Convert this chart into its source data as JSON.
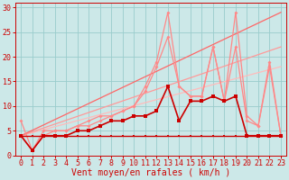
{
  "background_color": "#cce8e8",
  "grid_color": "#99cccc",
  "xlabel": "Vent moyen/en rafales ( km/h )",
  "xlabel_color": "#cc0000",
  "xlabel_fontsize": 7,
  "tick_color": "#cc0000",
  "tick_fontsize": 6,
  "xlim": [
    -0.5,
    23.5
  ],
  "ylim": [
    0,
    31
  ],
  "yticks": [
    0,
    5,
    10,
    15,
    20,
    25,
    30
  ],
  "xticks": [
    0,
    1,
    2,
    3,
    4,
    5,
    6,
    7,
    8,
    9,
    10,
    11,
    12,
    13,
    14,
    15,
    16,
    17,
    18,
    19,
    20,
    21,
    22,
    23
  ],
  "series": [
    {
      "x": [
        0,
        23
      ],
      "y": [
        4,
        18
      ],
      "color": "#ffbbbb",
      "lw": 0.9,
      "marker": null,
      "markersize": 0,
      "zorder": 2
    },
    {
      "x": [
        0,
        23
      ],
      "y": [
        4,
        22
      ],
      "color": "#ff9999",
      "lw": 0.9,
      "marker": null,
      "markersize": 0,
      "zorder": 2
    },
    {
      "x": [
        0,
        23
      ],
      "y": [
        4,
        29
      ],
      "color": "#ff6666",
      "lw": 0.9,
      "marker": null,
      "markersize": 0,
      "zorder": 2
    },
    {
      "x": [
        0,
        1,
        2,
        3,
        4,
        5,
        6,
        7,
        8,
        9,
        10,
        11,
        12,
        13,
        14,
        15,
        16,
        17,
        18,
        19,
        20,
        21,
        22,
        23
      ],
      "y": [
        7,
        1,
        5,
        5,
        5,
        6,
        7,
        8,
        8,
        9,
        10,
        14,
        19,
        29,
        14,
        12,
        12,
        22,
        11,
        29,
        8,
        6,
        19,
        4
      ],
      "color": "#ff8888",
      "lw": 0.9,
      "marker": "D",
      "markersize": 2.0,
      "zorder": 3
    },
    {
      "x": [
        0,
        1,
        2,
        3,
        4,
        5,
        6,
        7,
        8,
        9,
        10,
        11,
        12,
        13,
        14,
        15,
        16,
        17,
        18,
        19,
        20,
        21,
        22,
        23
      ],
      "y": [
        4,
        1,
        4,
        5,
        5,
        6,
        6,
        7,
        8,
        9,
        10,
        13,
        18,
        24,
        14,
        12,
        12,
        22,
        11,
        22,
        7,
        6,
        18,
        4
      ],
      "color": "#ff8888",
      "lw": 0.9,
      "marker": "D",
      "markersize": 2.0,
      "zorder": 3
    },
    {
      "x": [
        0,
        1,
        2,
        3,
        4,
        5,
        6,
        7,
        8,
        9,
        10,
        11,
        12,
        13,
        14,
        15,
        16,
        17,
        18,
        19,
        20,
        21,
        22,
        23
      ],
      "y": [
        4,
        1,
        4,
        4,
        4,
        5,
        5,
        6,
        7,
        7,
        8,
        8,
        9,
        14,
        7,
        11,
        11,
        12,
        11,
        12,
        4,
        4,
        4,
        4
      ],
      "color": "#cc0000",
      "lw": 1.2,
      "marker": "s",
      "markersize": 2.5,
      "zorder": 5
    },
    {
      "x": [
        0,
        1,
        2,
        3,
        4,
        5,
        6,
        7,
        8,
        9,
        10,
        11,
        12,
        13,
        14,
        15,
        16,
        17,
        18,
        19,
        20,
        21,
        22,
        23
      ],
      "y": [
        4,
        4,
        4,
        4,
        4,
        4,
        4,
        4,
        4,
        4,
        4,
        4,
        4,
        4,
        4,
        4,
        4,
        4,
        4,
        4,
        4,
        4,
        4,
        4
      ],
      "color": "#cc0000",
      "lw": 1.0,
      "marker": "s",
      "markersize": 2.0,
      "zorder": 5
    }
  ]
}
